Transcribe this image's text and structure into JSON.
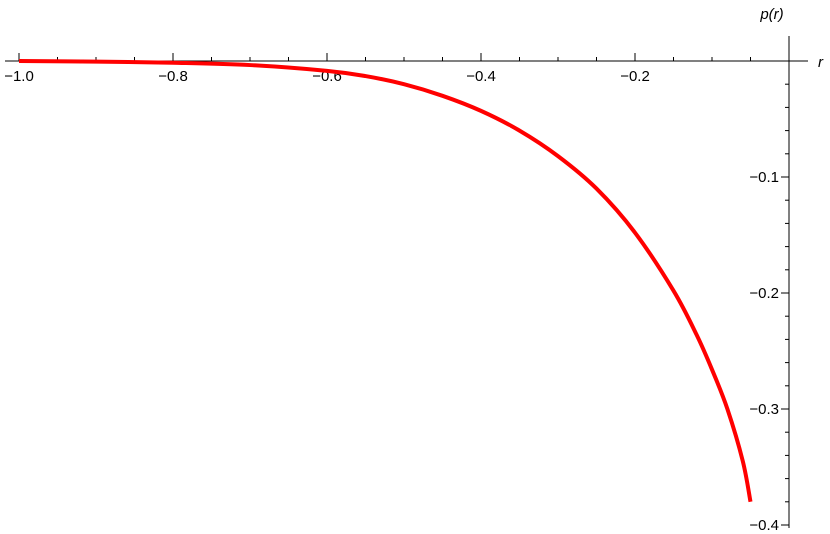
{
  "chart_data": {
    "type": "line",
    "title": "",
    "xlabel": "r",
    "ylabel": "p(r)",
    "xlim": [
      -1.0,
      -0.03
    ],
    "ylim": [
      -0.4,
      0.0
    ],
    "x_tick_labels": [
      "−1.0",
      "−0.8",
      "−0.6",
      "−0.4",
      "−0.2"
    ],
    "x_tick_values": [
      -1.0,
      -0.8,
      -0.6,
      -0.4,
      -0.2
    ],
    "y_tick_labels": [
      "−0.1",
      "−0.2",
      "−0.3",
      "−0.4"
    ],
    "y_tick_values": [
      -0.1,
      -0.2,
      -0.3,
      -0.4
    ],
    "grid": false,
    "series": [
      {
        "color": "#ff0000",
        "x": [
          -1.0,
          -0.9,
          -0.8,
          -0.7,
          -0.6,
          -0.55,
          -0.5,
          -0.45,
          -0.4,
          -0.35,
          -0.3,
          -0.25,
          -0.2,
          -0.15,
          -0.12,
          -0.1,
          -0.08,
          -0.06,
          -0.05
        ],
        "y": [
          0.0,
          -0.0005,
          -0.0015,
          -0.0035,
          -0.0085,
          -0.013,
          -0.02,
          -0.03,
          -0.043,
          -0.06,
          -0.082,
          -0.11,
          -0.148,
          -0.198,
          -0.236,
          -0.266,
          -0.3,
          -0.345,
          -0.38
        ]
      }
    ]
  }
}
